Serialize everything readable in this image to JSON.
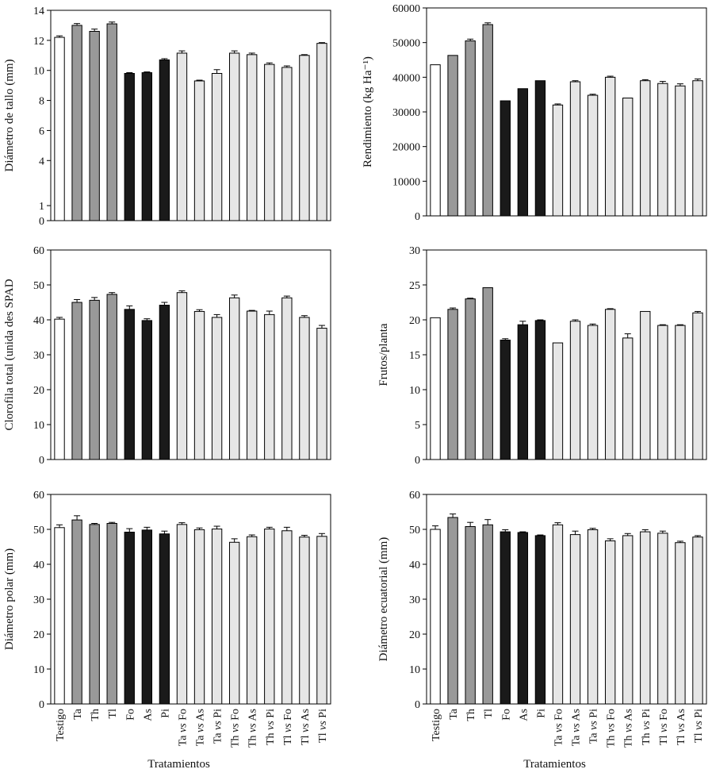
{
  "figure": {
    "categories": [
      "Testigo",
      "Ta",
      "Th",
      "Tl",
      "Fo",
      "As",
      "Pi",
      "Ta vs Fo",
      "Ta vs As",
      "Ta vs Pi",
      "Th vs Fo",
      "Th vs As",
      "Th vs Pi",
      "Tl vs Fo",
      "Tl vs As",
      "Tl vs Pi"
    ],
    "bar_fill_by_index": [
      "#ffffff",
      "#999999",
      "#999999",
      "#999999",
      "#1a1a1a",
      "#1a1a1a",
      "#1a1a1a",
      "#e6e6e6",
      "#e6e6e6",
      "#e6e6e6",
      "#e6e6e6",
      "#e6e6e6",
      "#e6e6e6",
      "#e6e6e6",
      "#e6e6e6",
      "#e6e6e6"
    ],
    "xlabel": "Tratamientos"
  },
  "chart_data": [
    {
      "type": "bar",
      "ylabel": "Diámetro de tallo (mm)",
      "ylim": [
        0,
        14
      ],
      "yticks": [
        0,
        1,
        4,
        6,
        8,
        10,
        12,
        14
      ],
      "values": [
        12.2,
        13.0,
        12.6,
        13.1,
        9.8,
        9.85,
        10.7,
        11.15,
        9.3,
        9.8,
        11.15,
        11.05,
        10.4,
        10.2,
        11.0,
        11.8
      ],
      "errors": [
        0.1,
        0.12,
        0.15,
        0.12,
        0.05,
        0.05,
        0.08,
        0.15,
        0.05,
        0.25,
        0.15,
        0.1,
        0.1,
        0.1,
        0.05,
        0.05
      ],
      "tick_labels": [
        "0",
        "1",
        "4",
        "6",
        "8",
        "10",
        "12",
        "14"
      ]
    },
    {
      "type": "bar",
      "ylabel": "Rendimiento (kg Ha⁻¹)",
      "ylim": [
        0,
        60000
      ],
      "yticks": [
        0,
        10000,
        20000,
        30000,
        40000,
        50000,
        60000
      ],
      "values": [
        43600,
        46300,
        50500,
        55200,
        33200,
        36700,
        39000,
        32000,
        38700,
        34800,
        40000,
        34000,
        39000,
        38200,
        37500,
        39000
      ],
      "errors": [
        0,
        0,
        500,
        500,
        0,
        0,
        0,
        300,
        300,
        300,
        300,
        0,
        300,
        600,
        600,
        500
      ],
      "tick_labels": [
        "0",
        "10000",
        "20000",
        "30000",
        "40000",
        "50000",
        "60000"
      ]
    },
    {
      "type": "bar",
      "ylabel": "Clorofila total (unida des SPAD",
      "ylim": [
        0,
        60
      ],
      "yticks": [
        0,
        10,
        20,
        30,
        40,
        50,
        60
      ],
      "values": [
        40.2,
        45.0,
        45.6,
        47.3,
        43.0,
        39.8,
        44.2,
        47.8,
        42.4,
        40.7,
        46.3,
        42.5,
        41.5,
        46.3,
        40.7,
        37.6
      ],
      "errors": [
        0.5,
        0.8,
        0.8,
        0.5,
        1.0,
        0.5,
        0.8,
        0.5,
        0.5,
        0.8,
        0.8,
        0.2,
        1.0,
        0.5,
        0.5,
        0.8
      ],
      "tick_labels": [
        "0",
        "10",
        "20",
        "30",
        "40",
        "50",
        "60"
      ]
    },
    {
      "type": "bar",
      "ylabel": "Frutos/planta",
      "ylim": [
        0,
        30
      ],
      "yticks": [
        0,
        5,
        10,
        15,
        20,
        25,
        30
      ],
      "values": [
        20.3,
        21.5,
        23.0,
        24.6,
        17.1,
        19.3,
        19.9,
        16.7,
        19.8,
        19.2,
        21.5,
        17.4,
        21.2,
        19.2,
        19.2,
        21.0
      ],
      "errors": [
        0,
        0.2,
        0.1,
        0,
        0.2,
        0.5,
        0.1,
        0,
        0.2,
        0.2,
        0.1,
        0.6,
        0,
        0.1,
        0.1,
        0.2
      ],
      "tick_labels": [
        "0",
        "5",
        "10",
        "15",
        "20",
        "25",
        "30"
      ]
    },
    {
      "type": "bar",
      "ylabel": "Diámetro polar (mm)",
      "ylim": [
        0,
        60
      ],
      "yticks": [
        0,
        10,
        20,
        30,
        40,
        50,
        60
      ],
      "values": [
        50.5,
        52.7,
        51.4,
        51.7,
        49.2,
        49.8,
        48.7,
        51.4,
        49.9,
        50.1,
        46.3,
        47.9,
        50.1,
        49.6,
        47.8,
        48.0
      ],
      "errors": [
        0.8,
        1.2,
        0.3,
        0.3,
        1.0,
        0.8,
        0.8,
        0.5,
        0.5,
        0.8,
        1.0,
        0.5,
        0.5,
        1.0,
        0.5,
        0.8
      ],
      "tick_labels": [
        "0",
        "10",
        "20",
        "30",
        "40",
        "50",
        "60"
      ]
    },
    {
      "type": "bar",
      "ylabel": "Diámetro ecuatorial (mm)",
      "ylim": [
        0,
        60
      ],
      "yticks": [
        0,
        10,
        20,
        30,
        40,
        50,
        60
      ],
      "values": [
        50.0,
        53.4,
        50.8,
        51.3,
        49.3,
        49.1,
        48.2,
        51.3,
        48.5,
        49.9,
        46.7,
        48.2,
        49.3,
        48.9,
        46.2,
        47.8
      ],
      "errors": [
        1.0,
        1.0,
        1.2,
        1.5,
        0.6,
        0.2,
        0.2,
        0.6,
        1.0,
        0.4,
        0.6,
        0.6,
        0.6,
        0.6,
        0.4,
        0.4
      ],
      "tick_labels": [
        "0",
        "10",
        "20",
        "30",
        "40",
        "50",
        "60"
      ]
    }
  ]
}
